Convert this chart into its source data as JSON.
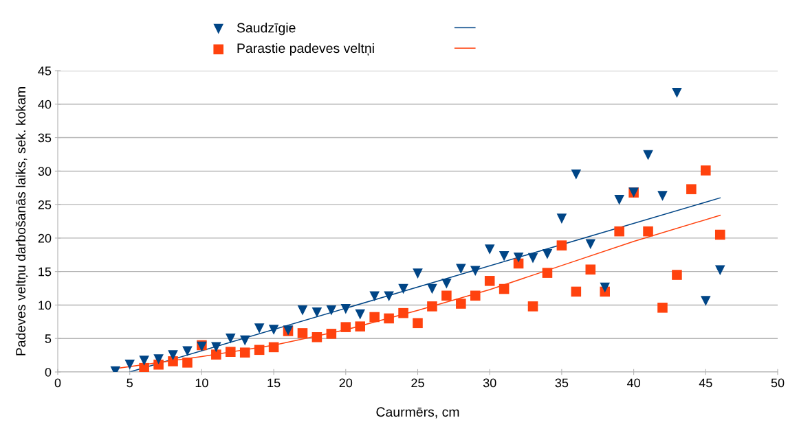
{
  "chart_data": {
    "type": "scatter",
    "xlabel": "Caurmērs, cm",
    "ylabel": "Padeves veltņu darbošanās laiks, sek. kokam",
    "xlim": [
      0,
      50
    ],
    "xticks": [
      0,
      5,
      10,
      15,
      20,
      25,
      30,
      35,
      40,
      45,
      50
    ],
    "ylim": [
      0,
      45
    ],
    "yticks": [
      0,
      5,
      10,
      15,
      20,
      25,
      30,
      35,
      40,
      45
    ],
    "grid": "y",
    "legend": "top",
    "series": [
      {
        "name": "Saudzīgie",
        "marker": "triangle",
        "color": "#004586",
        "x": [
          4,
          5,
          6,
          7,
          8,
          9,
          10,
          11,
          12,
          13,
          14,
          15,
          16,
          17,
          18,
          19,
          20,
          21,
          22,
          23,
          24,
          25,
          26,
          27,
          28,
          29,
          30,
          31,
          32,
          33,
          34,
          35,
          36,
          37,
          38,
          39,
          40,
          41,
          42,
          43,
          45,
          46
        ],
        "values": [
          0.1,
          1.1,
          1.7,
          1.9,
          2.5,
          3.1,
          3.8,
          3.7,
          5.0,
          4.7,
          6.5,
          6.3,
          6.2,
          9.2,
          8.9,
          9.2,
          9.4,
          8.6,
          11.3,
          11.3,
          12.4,
          14.7,
          12.4,
          13.2,
          15.4,
          15.1,
          18.3,
          17.3,
          17.1,
          17.0,
          17.6,
          22.9,
          29.5,
          19.1,
          12.6,
          25.7,
          26.8,
          32.4,
          26.3,
          41.7,
          10.6,
          15.2
        ]
      },
      {
        "name": "Parastie padeves veltņi",
        "marker": "square",
        "color": "#ff420e",
        "x": [
          6,
          7,
          8,
          9,
          10,
          11,
          12,
          13,
          14,
          15,
          16,
          17,
          18,
          19,
          20,
          21,
          22,
          23,
          24,
          25,
          26,
          27,
          28,
          29,
          30,
          31,
          32,
          33,
          34,
          35,
          36,
          37,
          38,
          39,
          40,
          41,
          42,
          43,
          44,
          45,
          46
        ],
        "values": [
          0.6,
          1.1,
          1.6,
          1.4,
          4.0,
          2.6,
          3.0,
          2.9,
          3.3,
          3.7,
          6.1,
          5.8,
          5.2,
          5.7,
          6.7,
          6.8,
          8.2,
          8.0,
          8.8,
          7.3,
          9.8,
          11.4,
          10.2,
          11.4,
          13.6,
          12.4,
          16.2,
          9.8,
          14.8,
          18.9,
          12.0,
          15.3,
          12.0,
          21.0,
          26.8,
          21.0,
          9.6,
          14.5,
          27.3,
          30.1,
          20.5
        ]
      },
      {
        "type": "line",
        "marker": "none",
        "color": "#004586",
        "x": [
          5,
          46
        ],
        "values": [
          0,
          26.0
        ]
      },
      {
        "type": "line",
        "marker": "none",
        "color": "#ff420e",
        "x": [
          4,
          10,
          15,
          20,
          25,
          30,
          35,
          40,
          46
        ],
        "values": [
          0.5,
          2.3,
          4.0,
          6.3,
          9.2,
          12.3,
          15.9,
          19.5,
          23.4
        ]
      }
    ]
  }
}
